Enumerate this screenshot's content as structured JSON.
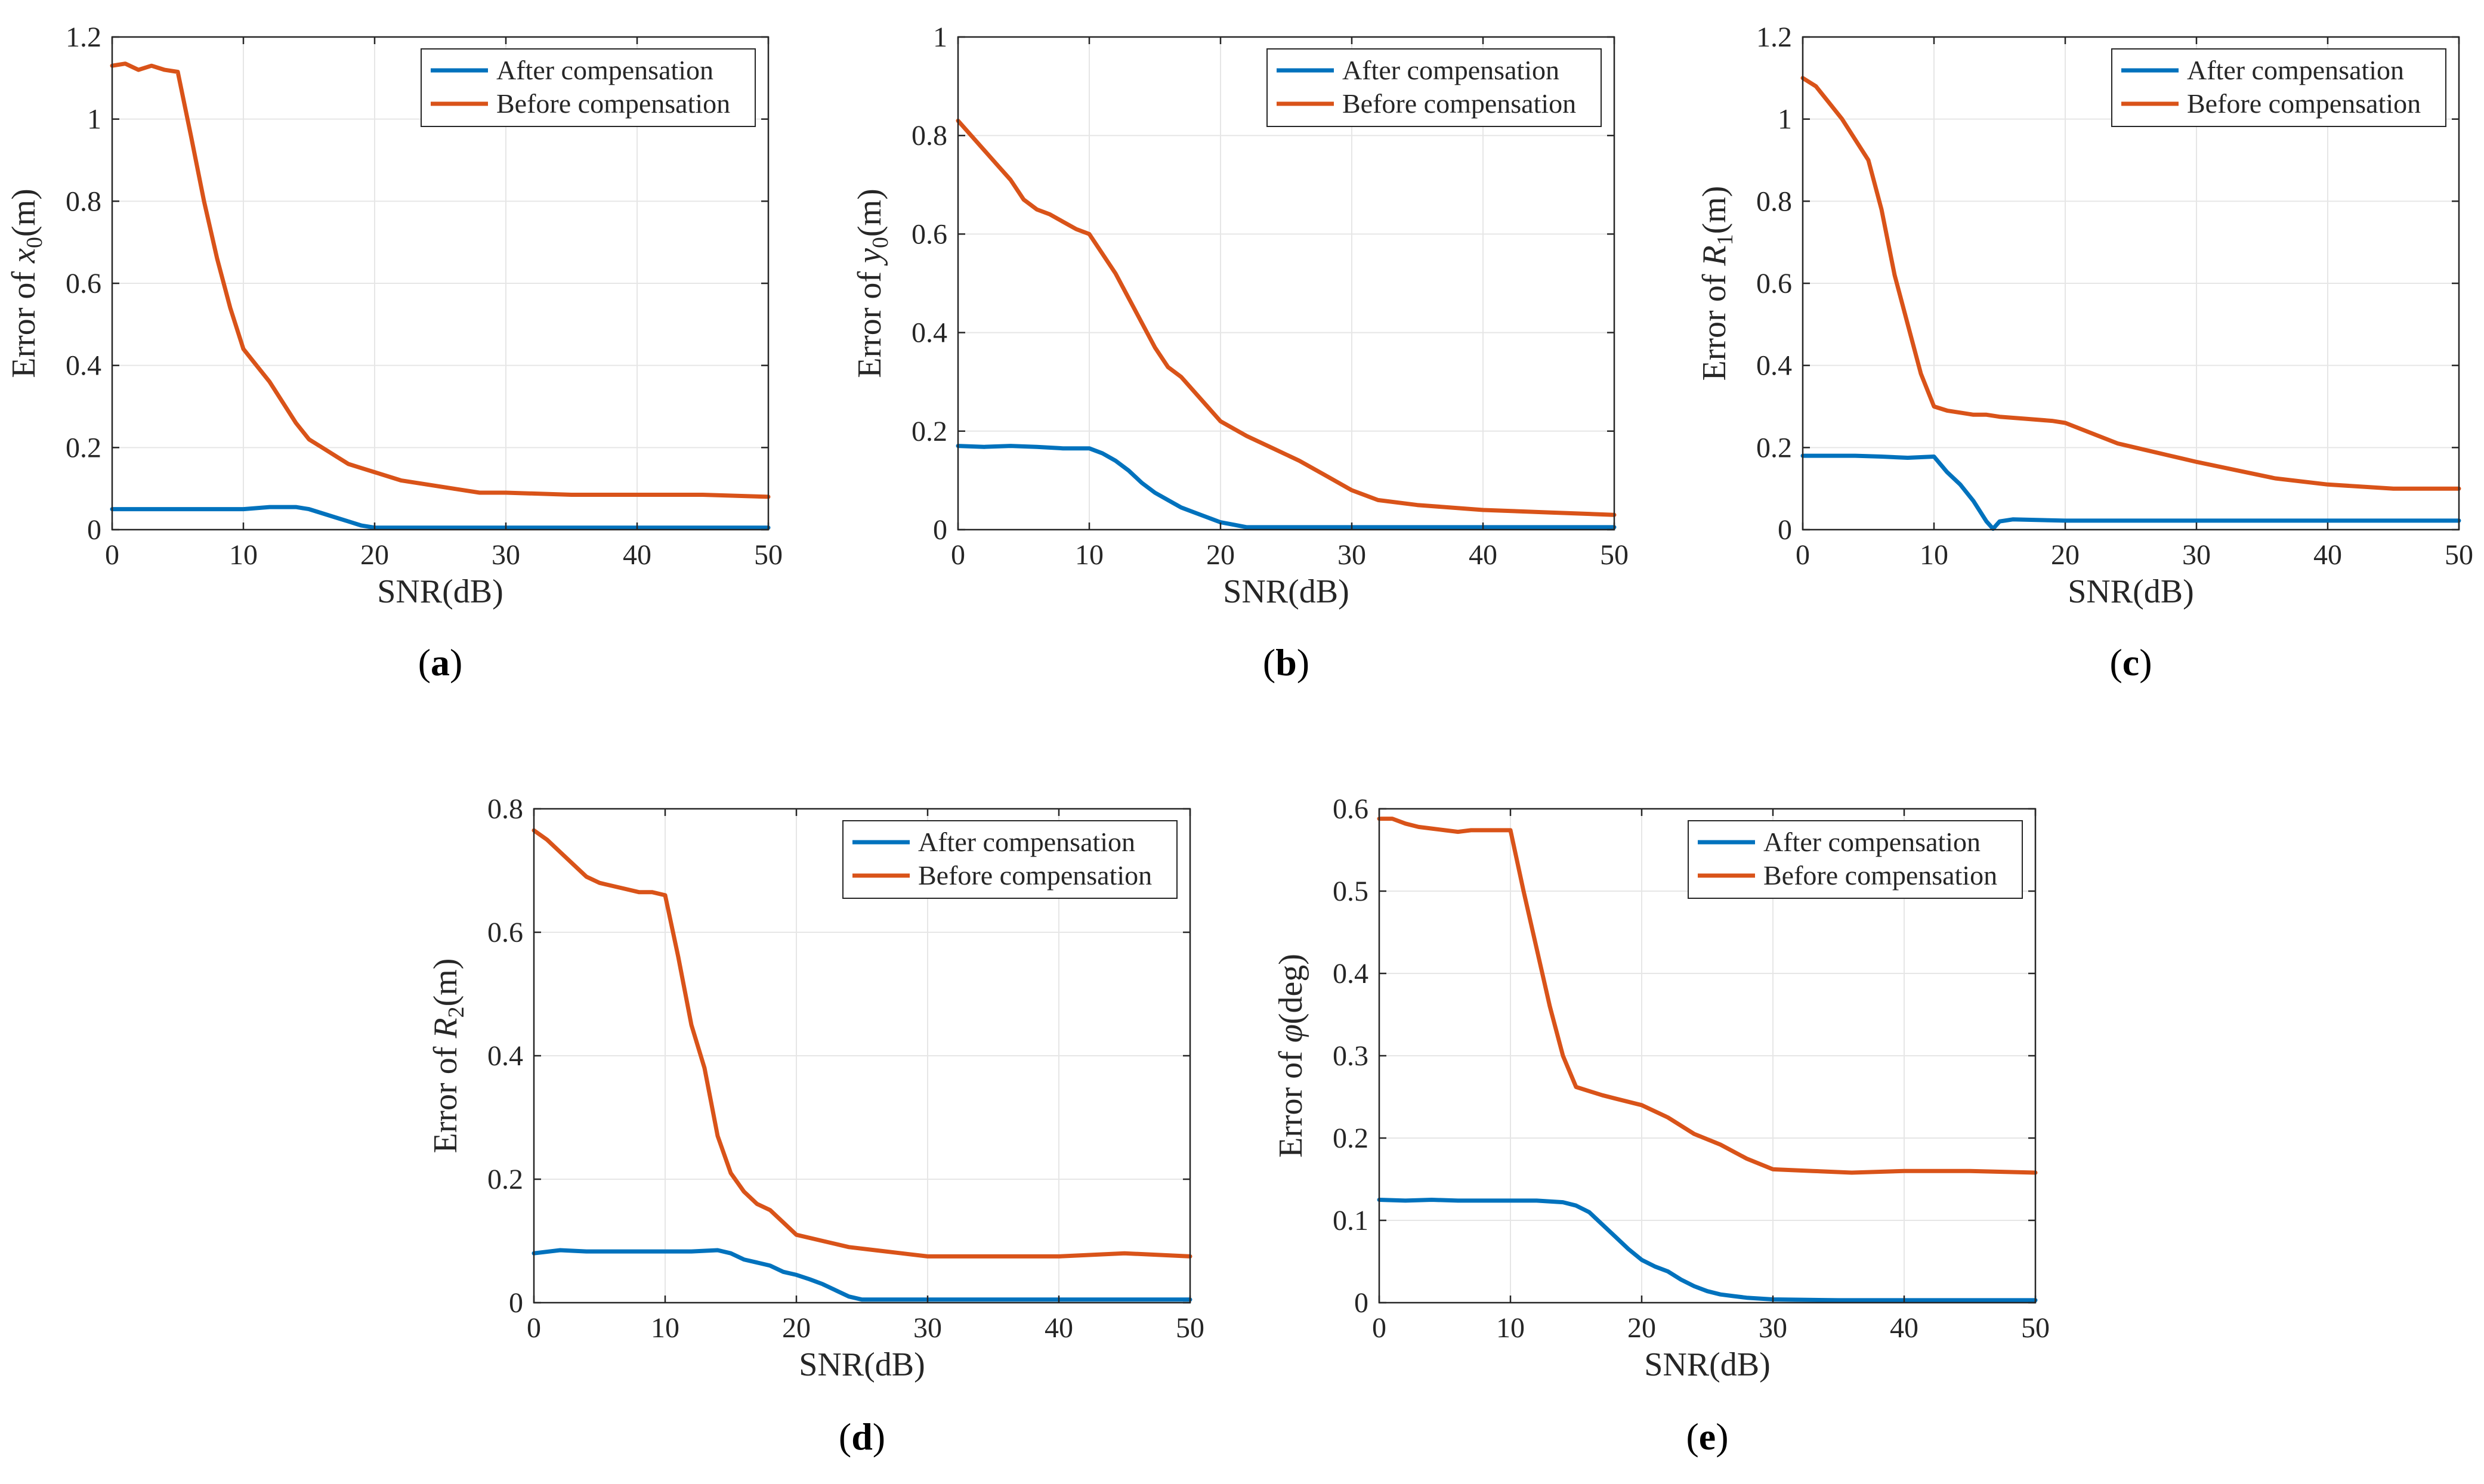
{
  "figure": {
    "colors": {
      "after": "#0072BD",
      "before": "#D95319",
      "grid": "#e6e6e6",
      "axis": "#262626"
    }
  },
  "chart_data": [
    {
      "type": "line",
      "id": "a",
      "caption": "a",
      "title": "",
      "xlabel": "SNR(dB)",
      "ylabel_prefix": "Error of ",
      "ylabel_var": "x",
      "ylabel_sub": "0",
      "ylabel_suffix": "(m)",
      "xlim": [
        0,
        50
      ],
      "ylim": [
        0,
        1.2
      ],
      "xticks": [
        0,
        10,
        20,
        30,
        40,
        50
      ],
      "yticks": [
        0,
        0.2,
        0.4,
        0.6,
        0.8,
        1,
        1.2
      ],
      "ytick_labels": [
        "0",
        "0.2",
        "0.4",
        "0.6",
        "0.8",
        "1",
        "1.2"
      ],
      "legend": [
        "After compensation",
        "Before compensation"
      ],
      "series": [
        {
          "name": "After compensation",
          "x": [
            0,
            2,
            4,
            6,
            8,
            10,
            12,
            14,
            15,
            16,
            17,
            18,
            19,
            20,
            22,
            25,
            30,
            35,
            40,
            45,
            50
          ],
          "y": [
            0.05,
            0.05,
            0.05,
            0.05,
            0.05,
            0.05,
            0.055,
            0.055,
            0.05,
            0.04,
            0.03,
            0.02,
            0.01,
            0.005,
            0.005,
            0.005,
            0.005,
            0.005,
            0.005,
            0.005,
            0.005
          ]
        },
        {
          "name": "Before compensation",
          "x": [
            0,
            1,
            2,
            3,
            4,
            5,
            6,
            7,
            8,
            9,
            10,
            11,
            12,
            13,
            14,
            15,
            16,
            17,
            18,
            19,
            20,
            22,
            24,
            26,
            28,
            30,
            35,
            40,
            45,
            50
          ],
          "y": [
            1.13,
            1.135,
            1.12,
            1.13,
            1.12,
            1.115,
            0.96,
            0.8,
            0.66,
            0.54,
            0.44,
            0.4,
            0.36,
            0.31,
            0.26,
            0.22,
            0.2,
            0.18,
            0.16,
            0.15,
            0.14,
            0.12,
            0.11,
            0.1,
            0.09,
            0.09,
            0.085,
            0.085,
            0.085,
            0.08
          ]
        }
      ]
    },
    {
      "type": "line",
      "id": "b",
      "caption": "b",
      "title": "",
      "xlabel": "SNR(dB)",
      "ylabel_prefix": "Error of ",
      "ylabel_var": "y",
      "ylabel_sub": "0",
      "ylabel_suffix": "(m)",
      "xlim": [
        0,
        50
      ],
      "ylim": [
        0,
        1
      ],
      "xticks": [
        0,
        10,
        20,
        30,
        40,
        50
      ],
      "yticks": [
        0,
        0.2,
        0.4,
        0.6,
        0.8,
        1
      ],
      "ytick_labels": [
        "0",
        "0.2",
        "0.4",
        "0.6",
        "0.8",
        "1"
      ],
      "legend": [
        "After compensation",
        "Before compensation"
      ],
      "series": [
        {
          "name": "After compensation",
          "x": [
            0,
            2,
            4,
            6,
            8,
            10,
            11,
            12,
            13,
            14,
            15,
            16,
            17,
            18,
            19,
            20,
            21,
            22,
            25,
            30,
            35,
            40,
            45,
            50
          ],
          "y": [
            0.17,
            0.168,
            0.17,
            0.168,
            0.165,
            0.165,
            0.155,
            0.14,
            0.12,
            0.095,
            0.075,
            0.06,
            0.045,
            0.035,
            0.025,
            0.015,
            0.01,
            0.005,
            0.005,
            0.005,
            0.005,
            0.005,
            0.005,
            0.005
          ]
        },
        {
          "name": "Before compensation",
          "x": [
            0,
            1,
            2,
            3,
            4,
            5,
            6,
            7,
            8,
            9,
            10,
            11,
            12,
            13,
            14,
            15,
            16,
            17,
            18,
            19,
            20,
            22,
            24,
            26,
            28,
            30,
            32,
            35,
            40,
            45,
            50
          ],
          "y": [
            0.83,
            0.8,
            0.77,
            0.74,
            0.71,
            0.67,
            0.65,
            0.64,
            0.625,
            0.61,
            0.6,
            0.56,
            0.52,
            0.47,
            0.42,
            0.37,
            0.33,
            0.31,
            0.28,
            0.25,
            0.22,
            0.19,
            0.165,
            0.14,
            0.11,
            0.08,
            0.06,
            0.05,
            0.04,
            0.035,
            0.03
          ]
        }
      ]
    },
    {
      "type": "line",
      "id": "c",
      "caption": "c",
      "title": "",
      "xlabel": "SNR(dB)",
      "ylabel_prefix": "Error of ",
      "ylabel_var": "R",
      "ylabel_sub": "1",
      "ylabel_suffix": "(m)",
      "xlim": [
        0,
        50
      ],
      "ylim": [
        0,
        1.2
      ],
      "xticks": [
        0,
        10,
        20,
        30,
        40,
        50
      ],
      "yticks": [
        0,
        0.2,
        0.4,
        0.6,
        0.8,
        1,
        1.2
      ],
      "ytick_labels": [
        "0",
        "0.2",
        "0.4",
        "0.6",
        "0.8",
        "1",
        "1.2"
      ],
      "legend": [
        "After compensation",
        "Before compensation"
      ],
      "series": [
        {
          "name": "After compensation",
          "x": [
            0,
            2,
            4,
            6,
            8,
            10,
            11,
            12,
            13,
            14,
            14.5,
            15,
            16,
            20,
            25,
            30,
            35,
            40,
            45,
            50
          ],
          "y": [
            0.18,
            0.18,
            0.18,
            0.178,
            0.175,
            0.178,
            0.14,
            0.11,
            0.07,
            0.02,
            0.002,
            0.02,
            0.025,
            0.022,
            0.022,
            0.022,
            0.022,
            0.022,
            0.022,
            0.022
          ]
        },
        {
          "name": "Before compensation",
          "x": [
            0,
            1,
            2,
            3,
            4,
            5,
            6,
            7,
            8,
            9,
            10,
            11,
            12,
            13,
            14,
            15,
            17,
            19,
            20,
            22,
            24,
            26,
            28,
            30,
            33,
            36,
            40,
            45,
            50
          ],
          "y": [
            1.1,
            1.08,
            1.04,
            1.0,
            0.95,
            0.9,
            0.78,
            0.62,
            0.5,
            0.38,
            0.3,
            0.29,
            0.285,
            0.28,
            0.28,
            0.275,
            0.27,
            0.265,
            0.26,
            0.235,
            0.21,
            0.195,
            0.18,
            0.165,
            0.145,
            0.125,
            0.11,
            0.1,
            0.1
          ]
        }
      ]
    },
    {
      "type": "line",
      "id": "d",
      "caption": "d",
      "title": "",
      "xlabel": "SNR(dB)",
      "ylabel_prefix": "Error of ",
      "ylabel_var": "R",
      "ylabel_sub": "2",
      "ylabel_suffix": "(m)",
      "xlim": [
        0,
        50
      ],
      "ylim": [
        0,
        0.8
      ],
      "xticks": [
        0,
        10,
        20,
        30,
        40,
        50
      ],
      "yticks": [
        0,
        0.2,
        0.4,
        0.6,
        0.8
      ],
      "ytick_labels": [
        "0",
        "0.2",
        "0.4",
        "0.6",
        "0.8"
      ],
      "legend": [
        "After compensation",
        "Before compensation"
      ],
      "series": [
        {
          "name": "After compensation",
          "x": [
            0,
            2,
            4,
            6,
            8,
            10,
            12,
            14,
            15,
            16,
            17,
            18,
            19,
            20,
            21,
            22,
            23,
            24,
            25,
            27,
            30,
            35,
            40,
            45,
            50
          ],
          "y": [
            0.08,
            0.085,
            0.083,
            0.083,
            0.083,
            0.083,
            0.083,
            0.085,
            0.08,
            0.07,
            0.065,
            0.06,
            0.05,
            0.045,
            0.038,
            0.03,
            0.02,
            0.01,
            0.005,
            0.005,
            0.005,
            0.005,
            0.005,
            0.005,
            0.005
          ]
        },
        {
          "name": "Before compensation",
          "x": [
            0,
            1,
            2,
            3,
            4,
            5,
            6,
            7,
            8,
            9,
            10,
            11,
            12,
            13,
            14,
            15,
            16,
            17,
            18,
            19,
            20,
            22,
            24,
            26,
            28,
            30,
            33,
            36,
            40,
            45,
            50
          ],
          "y": [
            0.765,
            0.75,
            0.73,
            0.71,
            0.69,
            0.68,
            0.675,
            0.67,
            0.665,
            0.665,
            0.66,
            0.56,
            0.45,
            0.38,
            0.27,
            0.21,
            0.18,
            0.16,
            0.15,
            0.13,
            0.11,
            0.1,
            0.09,
            0.085,
            0.08,
            0.075,
            0.075,
            0.075,
            0.075,
            0.08,
            0.075
          ]
        }
      ]
    },
    {
      "type": "line",
      "id": "e",
      "caption": "e",
      "title": "",
      "xlabel": "SNR(dB)",
      "ylabel_prefix": "Error of ",
      "ylabel_var": "φ",
      "ylabel_sub": "",
      "ylabel_suffix": "(deg)",
      "xlim": [
        0,
        50
      ],
      "ylim": [
        0,
        0.6
      ],
      "xticks": [
        0,
        10,
        20,
        30,
        40,
        50
      ],
      "yticks": [
        0,
        0.1,
        0.2,
        0.3,
        0.4,
        0.5,
        0.6
      ],
      "ytick_labels": [
        "0",
        "0.1",
        "0.2",
        "0.3",
        "0.4",
        "0.5",
        "0.6"
      ],
      "legend": [
        "After compensation",
        "Before compensation"
      ],
      "series": [
        {
          "name": "After compensation",
          "x": [
            0,
            2,
            4,
            6,
            8,
            10,
            12,
            14,
            15,
            16,
            17,
            18,
            19,
            20,
            21,
            22,
            23,
            24,
            25,
            26,
            27,
            28,
            30,
            35,
            40,
            45,
            50
          ],
          "y": [
            0.125,
            0.124,
            0.125,
            0.124,
            0.124,
            0.124,
            0.124,
            0.122,
            0.118,
            0.11,
            0.095,
            0.08,
            0.065,
            0.052,
            0.044,
            0.038,
            0.028,
            0.02,
            0.014,
            0.01,
            0.008,
            0.006,
            0.004,
            0.003,
            0.003,
            0.003,
            0.003
          ]
        },
        {
          "name": "Before compensation",
          "x": [
            0,
            1,
            2,
            3,
            4,
            5,
            6,
            7,
            8,
            9,
            10,
            11,
            12,
            13,
            14,
            15,
            16,
            17,
            18,
            19,
            20,
            22,
            24,
            26,
            28,
            30,
            33,
            36,
            40,
            45,
            50
          ],
          "y": [
            0.588,
            0.588,
            0.582,
            0.578,
            0.576,
            0.574,
            0.572,
            0.574,
            0.574,
            0.574,
            0.574,
            0.5,
            0.43,
            0.36,
            0.3,
            0.262,
            0.257,
            0.252,
            0.248,
            0.244,
            0.24,
            0.225,
            0.205,
            0.192,
            0.175,
            0.162,
            0.16,
            0.158,
            0.16,
            0.16,
            0.158
          ]
        }
      ]
    }
  ]
}
